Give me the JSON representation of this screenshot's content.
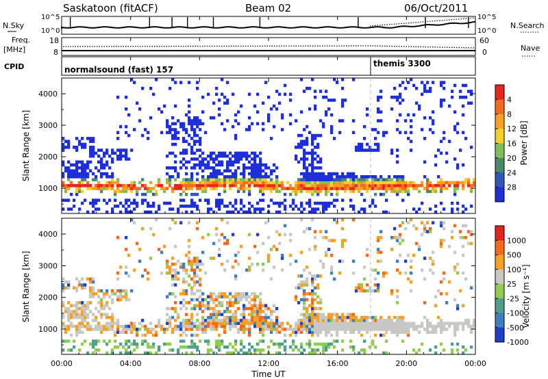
{
  "header": {
    "station": "Saskatoon (fitACF)",
    "beam": "Beam 02",
    "date": "06/Oct/2011"
  },
  "strip_labels": {
    "nsky": "N.Sky",
    "nsearch": "N.Search",
    "freq": "Freq.",
    "freq_unit": "[MHz]",
    "nave": "Nave",
    "cpid": "CPID",
    "nsky_ticks": [
      "10^5",
      "10^0"
    ],
    "freq_ticks": [
      "18",
      "8"
    ],
    "nave_ticks": [
      "60",
      "0"
    ],
    "cpid_modes": [
      "normalsound (fast) 157",
      "themis 3300"
    ]
  },
  "chart_data": [
    {
      "type": "heatmap",
      "title": "",
      "ylabel": "Slant Range [km]",
      "xlabel": "",
      "ylim": [
        200,
        4500
      ],
      "yticks": [
        "1000",
        "2000",
        "3000",
        "4000"
      ],
      "colorbar": {
        "label": "Power [dB]",
        "ticks": [
          "4",
          "8",
          "12",
          "16",
          "20",
          "24",
          "28"
        ],
        "colors": [
          "#1f2fd8",
          "#2f56b8",
          "#4a8a6a",
          "#7fbf57",
          "#f2d22a",
          "#f7a024",
          "#f56a1c",
          "#e8261c"
        ]
      }
    },
    {
      "type": "heatmap",
      "title": "",
      "ylabel": "Slant Range [km]",
      "xlabel": "Time UT",
      "ylim": [
        200,
        4500
      ],
      "yticks": [
        "1000",
        "2000",
        "3000",
        "4000"
      ],
      "xticks": [
        "00:00",
        "04:00",
        "08:00",
        "12:00",
        "16:00",
        "20:00",
        "00:00"
      ],
      "colorbar": {
        "label": "Velocity [m s⁻¹]",
        "ticks": [
          "1000",
          "500",
          "100",
          "25",
          "-25",
          "-100",
          "-500",
          "-1000"
        ],
        "colors": [
          "#1f3fc8",
          "#3f7fc0",
          "#4f9f8f",
          "#8fcc4f",
          "#c8c8c4",
          "#f7a024",
          "#f36a1c",
          "#e3241c"
        ]
      }
    }
  ]
}
